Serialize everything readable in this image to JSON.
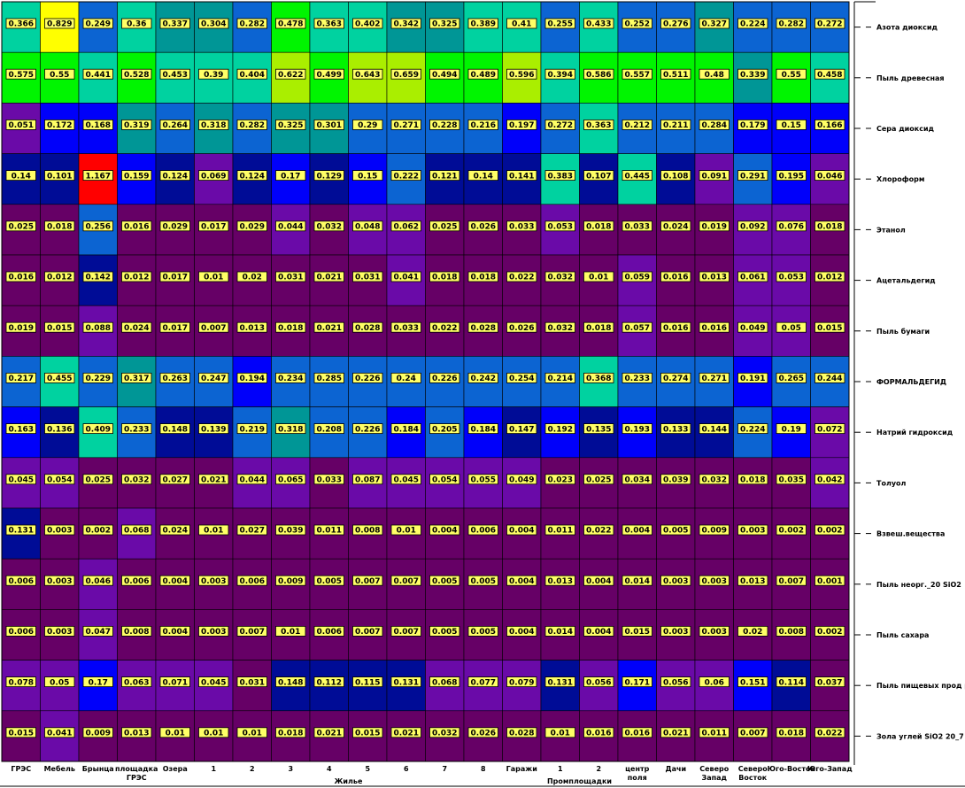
{
  "chart_data": {
    "type": "heatmap",
    "columns": [
      "ГРЭС",
      "Мебель",
      "Брынца",
      "площадка ГРЭС",
      "Озера",
      "1",
      "2",
      "3",
      "4",
      "5",
      "6",
      "7",
      "8",
      "Гаражи",
      "1",
      "2",
      "центр поля",
      "Дачи",
      "Северо Запад",
      "Северо Восток",
      "Юго-Восток",
      "Юго-Запад"
    ],
    "group_labels": [
      {
        "label": "Жилье",
        "from": 5,
        "to": 12
      },
      {
        "label": "Промплощадки",
        "from": 14,
        "to": 15
      }
    ],
    "rows": [
      "Азота диоксид",
      "Пыль древесная",
      "Сера диоксид",
      "Хлороформ",
      "Этанол",
      "Ацетальдегид",
      "Пыль бумаги",
      "ФОРМАЛЬДЕГИД",
      "Натрий гидроксид",
      "Толуол",
      "Взвеш.вещества",
      "Пыль неорг._20 SiO2",
      "Пыль сахара",
      "Пыль пищевых прод р",
      "Зола углей SiO2 20_7"
    ],
    "values": [
      [
        0.366,
        0.829,
        0.249,
        0.36,
        0.337,
        0.304,
        0.282,
        0.478,
        0.363,
        0.402,
        0.342,
        0.325,
        0.389,
        0.41,
        0.255,
        0.433,
        0.252,
        0.276,
        0.327,
        0.224,
        0.282,
        0.272
      ],
      [
        0.575,
        0.55,
        0.441,
        0.528,
        0.453,
        0.39,
        0.404,
        0.622,
        0.499,
        0.643,
        0.659,
        0.494,
        0.489,
        0.596,
        0.394,
        0.586,
        0.557,
        0.511,
        0.48,
        0.339,
        0.55,
        0.458
      ],
      [
        0.051,
        0.172,
        0.168,
        0.319,
        0.264,
        0.318,
        0.282,
        0.325,
        0.301,
        0.29,
        0.271,
        0.228,
        0.216,
        0.197,
        0.272,
        0.363,
        0.212,
        0.211,
        0.284,
        0.179,
        0.15,
        0.166
      ],
      [
        0.14,
        0.101,
        1.167,
        0.159,
        0.124,
        0.069,
        0.124,
        0.17,
        0.129,
        0.15,
        0.222,
        0.121,
        0.14,
        0.141,
        0.383,
        0.107,
        0.445,
        0.108,
        0.091,
        0.291,
        0.195,
        0.046
      ],
      [
        0.025,
        0.018,
        0.256,
        0.016,
        0.029,
        0.017,
        0.029,
        0.044,
        0.032,
        0.048,
        0.062,
        0.025,
        0.026,
        0.033,
        0.053,
        0.018,
        0.033,
        0.024,
        0.019,
        0.092,
        0.076,
        0.018
      ],
      [
        0.016,
        0.012,
        0.142,
        0.012,
        0.017,
        0.01,
        0.02,
        0.031,
        0.021,
        0.031,
        0.041,
        0.018,
        0.018,
        0.022,
        0.032,
        0.01,
        0.059,
        0.016,
        0.013,
        0.061,
        0.053,
        0.012
      ],
      [
        0.019,
        0.015,
        0.088,
        0.024,
        0.017,
        0.007,
        0.013,
        0.018,
        0.021,
        0.028,
        0.033,
        0.022,
        0.028,
        0.026,
        0.032,
        0.018,
        0.057,
        0.016,
        0.016,
        0.049,
        0.05,
        0.015
      ],
      [
        0.217,
        0.455,
        0.229,
        0.317,
        0.263,
        0.247,
        0.194,
        0.234,
        0.285,
        0.226,
        0.24,
        0.226,
        0.242,
        0.254,
        0.214,
        0.368,
        0.233,
        0.274,
        0.271,
        0.191,
        0.265,
        0.244
      ],
      [
        0.163,
        0.136,
        0.409,
        0.233,
        0.148,
        0.139,
        0.219,
        0.318,
        0.208,
        0.226,
        0.184,
        0.205,
        0.184,
        0.147,
        0.192,
        0.135,
        0.193,
        0.133,
        0.144,
        0.224,
        0.19,
        0.072
      ],
      [
        0.045,
        0.054,
        0.025,
        0.032,
        0.027,
        0.021,
        0.044,
        0.065,
        0.033,
        0.087,
        0.045,
        0.054,
        0.055,
        0.049,
        0.023,
        0.025,
        0.034,
        0.039,
        0.032,
        0.018,
        0.035,
        0.042
      ],
      [
        0.131,
        0.003,
        0.002,
        0.068,
        0.024,
        0.01,
        0.027,
        0.039,
        0.011,
        0.008,
        0.01,
        0.004,
        0.006,
        0.004,
        0.011,
        0.022,
        0.004,
        0.005,
        0.009,
        0.003,
        0.002,
        0.002
      ],
      [
        0.006,
        0.003,
        0.046,
        0.006,
        0.004,
        0.003,
        0.006,
        0.009,
        0.005,
        0.007,
        0.007,
        0.005,
        0.005,
        0.004,
        0.013,
        0.004,
        0.014,
        0.003,
        0.003,
        0.013,
        0.007,
        0.001
      ],
      [
        0.006,
        0.003,
        0.047,
        0.008,
        0.004,
        0.003,
        0.007,
        0.01,
        0.006,
        0.007,
        0.007,
        0.005,
        0.005,
        0.004,
        0.014,
        0.004,
        0.015,
        0.003,
        0.003,
        0.02,
        0.008,
        0.002
      ],
      [
        0.078,
        0.05,
        0.17,
        0.063,
        0.071,
        0.045,
        0.031,
        0.148,
        0.112,
        0.115,
        0.131,
        0.068,
        0.077,
        0.079,
        0.131,
        0.056,
        0.171,
        0.056,
        0.06,
        0.151,
        0.114,
        0.037
      ],
      [
        0.015,
        0.041,
        0.009,
        0.013,
        0.01,
        0.01,
        0.01,
        0.018,
        0.021,
        0.015,
        0.021,
        0.032,
        0.026,
        0.028,
        0.01,
        0.016,
        0.016,
        0.021,
        0.011,
        0.007,
        0.018,
        0.022
      ]
    ],
    "colormap": [
      {
        "max": 0.04,
        "color": "#660066"
      },
      {
        "max": 0.1,
        "color": "#6a0aa8"
      },
      {
        "max": 0.15,
        "color": "#000c96"
      },
      {
        "max": 0.2,
        "color": "#0000fa"
      },
      {
        "max": 0.3,
        "color": "#0c64d2"
      },
      {
        "max": 0.36,
        "color": "#009696"
      },
      {
        "max": 0.46,
        "color": "#00d2a0"
      },
      {
        "max": 0.59,
        "color": "#00f500"
      },
      {
        "max": 0.7,
        "color": "#aaee00"
      },
      {
        "max": 1.0,
        "color": "#ffff00"
      },
      {
        "max": 99,
        "color": "#ff0000"
      }
    ],
    "label_box_color": "#ffff66",
    "legend": "none"
  }
}
